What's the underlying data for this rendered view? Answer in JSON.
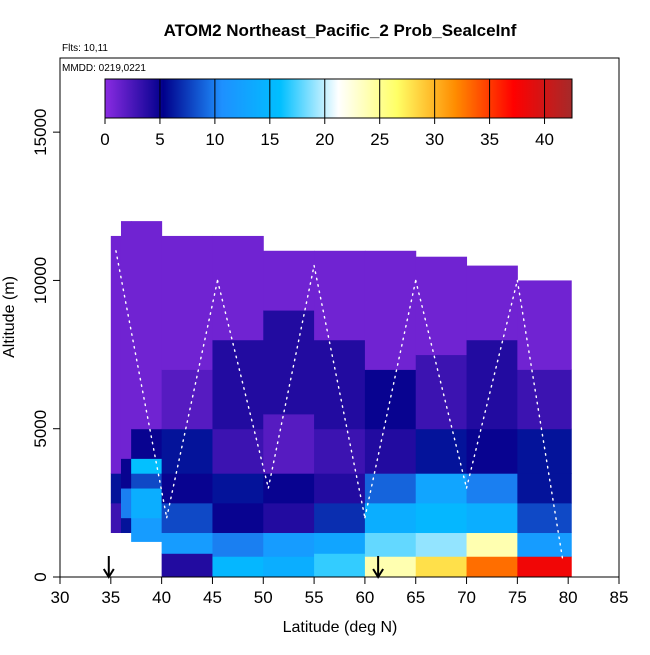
{
  "chart_data": {
    "type": "heatmap",
    "title": "ATOM2 Northeast_Pacific_2 Prob_SeaIceInf",
    "annotations": {
      "flights": "Flts: 10,11",
      "dates": "MMDD: 0219,0221"
    },
    "xlabel": "Latitude (deg N)",
    "ylabel": "Altitude (m)",
    "xlim": [
      30,
      85
    ],
    "ylim": [
      0,
      17500
    ],
    "xticks": [
      30,
      35,
      40,
      45,
      50,
      55,
      60,
      65,
      70,
      75,
      80,
      85
    ],
    "yticks": [
      0,
      5000,
      10000,
      15000
    ],
    "colorbar": {
      "ticks": [
        0,
        5,
        10,
        15,
        20,
        25,
        30,
        35,
        40
      ],
      "range": [
        0,
        42.5
      ],
      "colors": [
        "#8a2be2",
        "#00008b",
        "#1e90ff",
        "#00bfff",
        "#ffffff",
        "#ffff66",
        "#ff8c00",
        "#ff0000",
        "#a52a2a"
      ]
    },
    "arrows_at_latitude": [
      34.8,
      61.3
    ],
    "flight_track_color": "#ffffff",
    "columns": [
      {
        "lat": [
          35,
          36
        ],
        "alt": [
          1500,
          11500
        ],
        "rows": [
          [
            1500,
            2500,
            3
          ],
          [
            2500,
            3500,
            6
          ],
          [
            3500,
            11500,
            1
          ]
        ]
      },
      {
        "lat": [
          36,
          37
        ],
        "alt": [
          1500,
          12000
        ],
        "rows": [
          [
            1500,
            2000,
            6
          ],
          [
            2000,
            3000,
            10
          ],
          [
            3000,
            4000,
            5
          ],
          [
            4000,
            12000,
            1
          ]
        ]
      },
      {
        "lat": [
          37,
          40
        ],
        "alt": [
          1200,
          12000
        ],
        "rows": [
          [
            1200,
            2000,
            12
          ],
          [
            2000,
            3000,
            14
          ],
          [
            3000,
            3500,
            8
          ],
          [
            3500,
            4000,
            16
          ],
          [
            4000,
            5000,
            5
          ],
          [
            5000,
            12000,
            1
          ]
        ]
      },
      {
        "lat": [
          40,
          45
        ],
        "alt": [
          0,
          11500
        ],
        "rows": [
          [
            0,
            800,
            4
          ],
          [
            800,
            1500,
            12
          ],
          [
            1500,
            2500,
            8
          ],
          [
            2500,
            3500,
            5
          ],
          [
            3500,
            5000,
            6
          ],
          [
            5000,
            7000,
            2
          ],
          [
            7000,
            11500,
            1
          ]
        ]
      },
      {
        "lat": [
          45,
          50
        ],
        "alt": [
          0,
          11500
        ],
        "rows": [
          [
            0,
            700,
            15
          ],
          [
            700,
            1500,
            10
          ],
          [
            1500,
            2500,
            5
          ],
          [
            2500,
            3500,
            6
          ],
          [
            3500,
            5000,
            3
          ],
          [
            5000,
            8000,
            4
          ],
          [
            8000,
            11500,
            1
          ]
        ]
      },
      {
        "lat": [
          50,
          55
        ],
        "alt": [
          0,
          11000
        ],
        "rows": [
          [
            0,
            700,
            14
          ],
          [
            700,
            1500,
            12
          ],
          [
            1500,
            2500,
            4
          ],
          [
            2500,
            3500,
            5
          ],
          [
            3500,
            5500,
            2
          ],
          [
            5500,
            9000,
            4
          ],
          [
            9000,
            11000,
            1
          ]
        ]
      },
      {
        "lat": [
          55,
          60
        ],
        "alt": [
          0,
          11000
        ],
        "rows": [
          [
            0,
            800,
            17
          ],
          [
            800,
            1500,
            13
          ],
          [
            1500,
            2500,
            7
          ],
          [
            2500,
            3500,
            4
          ],
          [
            3500,
            5000,
            3
          ],
          [
            5000,
            8000,
            4
          ],
          [
            8000,
            11000,
            1
          ]
        ]
      },
      {
        "lat": [
          60,
          65
        ],
        "alt": [
          0,
          11000
        ],
        "rows": [
          [
            0,
            700,
            24
          ],
          [
            700,
            1500,
            18
          ],
          [
            1500,
            2500,
            14
          ],
          [
            2500,
            3500,
            9
          ],
          [
            3500,
            5000,
            4
          ],
          [
            5000,
            7000,
            5
          ],
          [
            7000,
            11000,
            1
          ]
        ]
      },
      {
        "lat": [
          65,
          70
        ],
        "alt": [
          0,
          10800
        ],
        "rows": [
          [
            0,
            700,
            28
          ],
          [
            700,
            1500,
            19
          ],
          [
            1500,
            2500,
            15
          ],
          [
            2500,
            3500,
            13
          ],
          [
            3500,
            5000,
            6
          ],
          [
            5000,
            7500,
            3
          ],
          [
            7500,
            10800,
            1
          ]
        ]
      },
      {
        "lat": [
          70,
          75
        ],
        "alt": [
          0,
          10500
        ],
        "rows": [
          [
            0,
            700,
            33
          ],
          [
            700,
            1500,
            24
          ],
          [
            1500,
            2500,
            14
          ],
          [
            2500,
            3500,
            10
          ],
          [
            3500,
            5000,
            5
          ],
          [
            5000,
            8000,
            4
          ],
          [
            8000,
            10500,
            1
          ]
        ]
      },
      {
        "lat": [
          75,
          80.3
        ],
        "alt": [
          0,
          10000
        ],
        "rows": [
          [
            0,
            700,
            38
          ],
          [
            700,
            1500,
            12
          ],
          [
            1500,
            2500,
            8
          ],
          [
            2500,
            3500,
            6
          ],
          [
            3500,
            5000,
            6
          ],
          [
            5000,
            7000,
            3
          ],
          [
            7000,
            10000,
            1
          ]
        ]
      }
    ]
  }
}
